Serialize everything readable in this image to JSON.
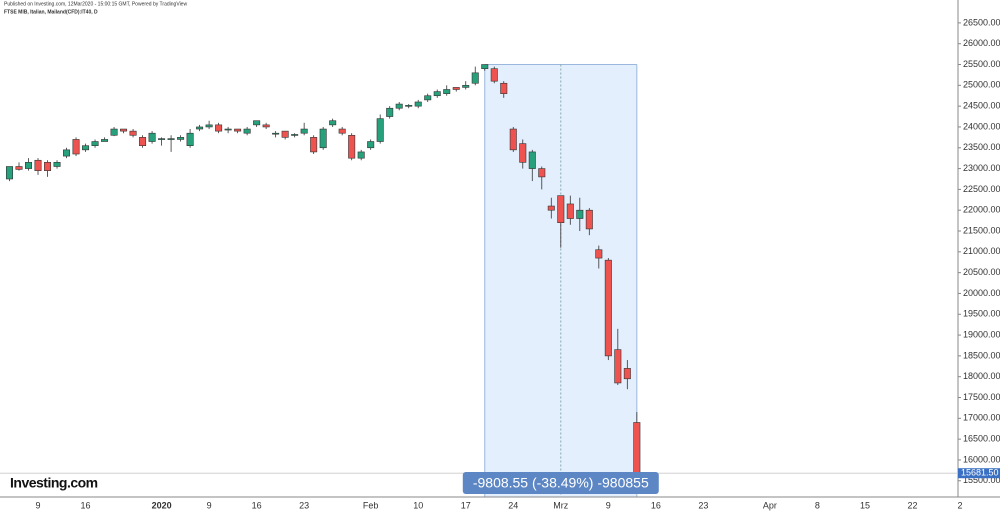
{
  "chart_data": {
    "type": "candlestick",
    "header": "Published on Investing.com, 12Mar2020 - 15:00:15 GMT, Powered by TradingView",
    "title": "FTSE MIB, Italian, Mailand(CFD):IT40, D",
    "logo": "Investing.com",
    "measure_label": "-9808.55 (-38.49%) -980855",
    "last_price": {
      "value": 15681.5,
      "label": "15681.50"
    },
    "up_color": "#26a17b",
    "down_color": "#ef5350",
    "categories": [
      null,
      null,
      null,
      "9",
      null,
      null,
      null,
      null,
      "16",
      null,
      null,
      null,
      null,
      null,
      null,
      null,
      "2020",
      null,
      null,
      null,
      null,
      "9",
      null,
      null,
      null,
      null,
      "16",
      null,
      null,
      null,
      null,
      "23",
      null,
      null,
      null,
      null,
      null,
      null,
      "Feb",
      null,
      null,
      null,
      null,
      "10",
      null,
      null,
      null,
      null,
      "17",
      null,
      null,
      null,
      null,
      "24",
      null,
      null,
      null,
      null,
      "Mrz",
      null,
      null,
      null,
      null,
      "9",
      null,
      null,
      null,
      null,
      "16",
      null,
      null,
      null,
      null,
      "23",
      null,
      null,
      null,
      null,
      null,
      null,
      "Apr",
      null,
      null,
      null,
      null,
      "8",
      null,
      null,
      null,
      null,
      "15",
      null,
      null,
      null,
      null,
      "22",
      null,
      null,
      null,
      null,
      "2"
    ],
    "open": [
      22750,
      23050,
      23000,
      23200,
      23150,
      23050,
      23300,
      23700,
      23450,
      23550,
      23650,
      23800,
      23950,
      23900,
      23750,
      23650,
      23700,
      23700,
      23700,
      23550,
      23950,
      24000,
      24050,
      23950,
      23950,
      23850,
      24050,
      24050,
      23850,
      23900,
      23800,
      23850,
      23750,
      23500,
      24050,
      23950,
      23800,
      23250,
      23500,
      23650,
      24250,
      24450,
      24500,
      24500,
      24650,
      24750,
      24800,
      24950,
      24950,
      25050,
      25400,
      25400,
      25050,
      23950,
      23600,
      23000,
      23000,
      22100,
      22350,
      22150,
      21800,
      22000,
      21050,
      20800,
      18650,
      18200,
      16900,
      null,
      null,
      null,
      null,
      null,
      null,
      null,
      null,
      null,
      null,
      null,
      null,
      null,
      null,
      null,
      null,
      null,
      null,
      null,
      null,
      null,
      null,
      null,
      null,
      null,
      null,
      null,
      null,
      null,
      null,
      null,
      null,
      null,
      null
    ],
    "high": [
      23050,
      23150,
      23250,
      23250,
      23200,
      23200,
      23500,
      23750,
      23600,
      23700,
      23750,
      24000,
      23950,
      23950,
      23800,
      23900,
      23750,
      23800,
      23800,
      23950,
      24050,
      24150,
      24100,
      24000,
      23950,
      24000,
      24150,
      24100,
      23900,
      23900,
      23850,
      24100,
      23800,
      24000,
      24200,
      24000,
      23850,
      23450,
      23700,
      24300,
      24500,
      24600,
      24550,
      24650,
      24800,
      24900,
      25000,
      24950,
      25100,
      25450,
      25500,
      25450,
      25100,
      24000,
      23700,
      23450,
      23050,
      22300,
      22350,
      22350,
      22300,
      22050,
      21150,
      20850,
      19150,
      18400,
      17150,
      null,
      null,
      null,
      null,
      null,
      null,
      null,
      null,
      null,
      null,
      null,
      null,
      null,
      null,
      null,
      null,
      null,
      null,
      null,
      null,
      null,
      null,
      null,
      null,
      null,
      null,
      null,
      null,
      null,
      null,
      null,
      null,
      null,
      null
    ],
    "low": [
      22700,
      22950,
      22950,
      22850,
      22800,
      23000,
      23250,
      23300,
      23400,
      23500,
      23650,
      23780,
      23850,
      23750,
      23500,
      23600,
      23550,
      23400,
      23650,
      23500,
      23900,
      23950,
      23850,
      23850,
      23850,
      23800,
      24000,
      23950,
      23750,
      23700,
      23750,
      23800,
      23350,
      23450,
      24000,
      23800,
      23200,
      23200,
      23450,
      23600,
      24200,
      24400,
      24450,
      24450,
      24600,
      24700,
      24750,
      24850,
      24900,
      25000,
      25350,
      25050,
      24700,
      23400,
      23000,
      22700,
      22500,
      21800,
      21100,
      21650,
      21500,
      21400,
      20600,
      18400,
      17800,
      17700,
      15500,
      null,
      null,
      null,
      null,
      null,
      null,
      null,
      null,
      null,
      null,
      null,
      null,
      null,
      null,
      null,
      null,
      null,
      null,
      null,
      null,
      null,
      null,
      null,
      null,
      null,
      null,
      null,
      null,
      null,
      null,
      null,
      null,
      null,
      null
    ],
    "close": [
      23050,
      22980,
      23150,
      22950,
      22950,
      23150,
      23450,
      23350,
      23550,
      23650,
      23700,
      23950,
      23900,
      23800,
      23550,
      23850,
      23720,
      23720,
      23750,
      23850,
      24000,
      24050,
      23900,
      23950,
      23900,
      23950,
      24150,
      24000,
      23850,
      23750,
      23820,
      23950,
      23400,
      23950,
      24150,
      23850,
      23250,
      23400,
      23650,
      24200,
      24450,
      24550,
      24520,
      24600,
      24750,
      24850,
      24900,
      24900,
      25000,
      25300,
      25500,
      25100,
      24800,
      23450,
      23150,
      23400,
      22800,
      22000,
      21700,
      21800,
      22000,
      21550,
      20850,
      18500,
      17850,
      17950,
      15681.5,
      null,
      null,
      null,
      null,
      null,
      null,
      null,
      null,
      null,
      null,
      null,
      null,
      null,
      null,
      null,
      null,
      null,
      null,
      null,
      null,
      null,
      null,
      null,
      null,
      null,
      null,
      null,
      null,
      null,
      null,
      null,
      null,
      null,
      null
    ],
    "ylim": [
      15110,
      27050
    ],
    "yticks": [
      {
        "value": 15500,
        "label": "15500.00"
      },
      {
        "value": 16000,
        "label": "16000.00"
      },
      {
        "value": 16500,
        "label": "16500.00"
      },
      {
        "value": 17000,
        "label": "17000.00"
      },
      {
        "value": 17500,
        "label": "17500.00"
      },
      {
        "value": 18000,
        "label": "18000.00"
      },
      {
        "value": 18500,
        "label": "18500.00"
      },
      {
        "value": 19000,
        "label": "19000.00"
      },
      {
        "value": 19500,
        "label": "19500.00"
      },
      {
        "value": 20000,
        "label": "20000.00"
      },
      {
        "value": 20500,
        "label": "20500.00"
      },
      {
        "value": 21000,
        "label": "21000.00"
      },
      {
        "value": 21500,
        "label": "21500.00"
      },
      {
        "value": 22000,
        "label": "22000.00"
      },
      {
        "value": 22500,
        "label": "22500.00"
      },
      {
        "value": 23000,
        "label": "23000.00"
      },
      {
        "value": 23500,
        "label": "23500.00"
      },
      {
        "value": 24000,
        "label": "24000.00"
      },
      {
        "value": 24500,
        "label": "24500.00"
      },
      {
        "value": 25000,
        "label": "25000.00"
      },
      {
        "value": 25500,
        "label": "25500.00"
      },
      {
        "value": 26000,
        "label": "26000.00"
      },
      {
        "value": 26500,
        "label": "26500.00"
      }
    ]
  }
}
